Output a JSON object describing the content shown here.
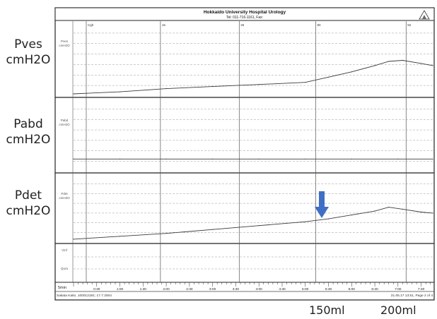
{
  "header": {
    "title": "Hokkaido University Hospital Urology",
    "subtitle": "Tel: 011-716-1161, Fax:"
  },
  "side_labels": {
    "pves": [
      "Pves",
      "cmH2O"
    ],
    "pabd": [
      "Pabd",
      "cmH2O"
    ],
    "pdet": [
      "Pdet",
      "cmH2O"
    ]
  },
  "channel_tags": {
    "pves": [
      "Pves",
      "cmH2O"
    ],
    "pabd": [
      "Pabd",
      "cmH2O"
    ],
    "pdet": [
      "Pdet",
      "cmH2O"
    ],
    "bottom": [
      "Vinf",
      "Qura"
    ]
  },
  "event_markers": [
    "Cgh",
    "15",
    "25",
    "80",
    "92"
  ],
  "footer": {
    "left": "Sakata Kaito, 100012181; 17.7.2004",
    "right": "31.05.17 13:51, Page 2 of 4",
    "time_unit": "5min"
  },
  "volume_labels": [
    "150ml",
    "200ml"
  ],
  "arrow": {
    "color": "#3e6fc4",
    "time": "5:00",
    "label": "150ml"
  },
  "colors": {
    "trace": "#3a3a3a",
    "grid": "#9a9a9a",
    "frame": "#222222",
    "arrow": "#3e6fc4"
  },
  "chart_data": {
    "type": "line",
    "x_unit": "min:sec",
    "x_ticks": [
      "0:30",
      "1:00",
      "1:30",
      "2:00",
      "2:30",
      "3:00",
      "3:30",
      "4:00",
      "4:30",
      "5:00",
      "5:30",
      "6:00",
      "6:30",
      "7:00",
      "7:30"
    ],
    "x_range": [
      0,
      7.75
    ],
    "y_range": [
      0,
      70
    ],
    "series": [
      {
        "name": "Pves",
        "x": [
          0,
          1,
          2,
          3,
          4,
          5,
          5.5,
          6,
          6.5,
          6.8,
          7.1,
          7.5,
          7.75
        ],
        "y": [
          2,
          4,
          7,
          9,
          11,
          13,
          18,
          23,
          29,
          33,
          34,
          31,
          29
        ]
      },
      {
        "name": "Pabd",
        "x": [
          0,
          1,
          2,
          3,
          4,
          5,
          6,
          7,
          7.75
        ],
        "y": [
          12,
          12,
          12,
          12,
          12,
          12,
          12,
          12,
          12
        ]
      },
      {
        "name": "Pdet",
        "x": [
          0,
          1,
          2,
          3,
          4,
          5,
          5.5,
          6,
          6.5,
          6.8,
          7.1,
          7.5,
          7.75
        ],
        "y": [
          3,
          6,
          9,
          13,
          17,
          21,
          24,
          28,
          32,
          36,
          34,
          31,
          30
        ]
      }
    ]
  }
}
